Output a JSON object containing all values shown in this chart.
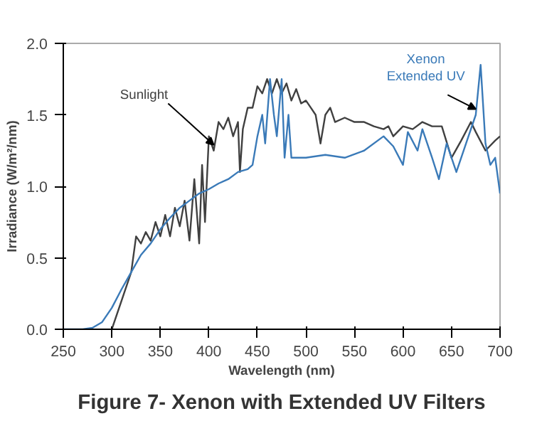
{
  "chart_data": {
    "type": "line",
    "title": "Figure 7- Xenon with Extended UV Filters",
    "xlabel": "Wavelength (nm)",
    "ylabel": "Irradiance (W/m²/nm)",
    "xlim": [
      250,
      700
    ],
    "xticks": [
      250,
      300,
      350,
      400,
      450,
      500,
      550,
      600,
      650,
      700
    ],
    "ylim": [
      0,
      2
    ],
    "yticks": [
      {
        "value": 0,
        "label": "0.0"
      },
      {
        "value": 0.5,
        "label": "0.5"
      },
      {
        "value": 1,
        "label": "1.0"
      },
      {
        "value": 1.5,
        "label": "1.5"
      },
      {
        "value": 2,
        "label": "2.0"
      }
    ],
    "grid": false,
    "marker": "none",
    "line_style": "solid",
    "series": [
      {
        "name": "Sunlight",
        "color": "#404040",
        "x": [
          300,
          310,
          320,
          325,
          330,
          335,
          340,
          345,
          350,
          355,
          360,
          365,
          370,
          375,
          380,
          385,
          390,
          393,
          396,
          400,
          405,
          410,
          415,
          420,
          425,
          430,
          432,
          435,
          440,
          445,
          450,
          455,
          460,
          465,
          470,
          475,
          480,
          485,
          490,
          495,
          500,
          505,
          510,
          515,
          520,
          525,
          530,
          540,
          550,
          560,
          570,
          580,
          585,
          590,
          600,
          610,
          620,
          630,
          640,
          650,
          660,
          670,
          675,
          685,
          695,
          700
        ],
        "values": [
          0,
          0.2,
          0.4,
          0.65,
          0.6,
          0.68,
          0.62,
          0.75,
          0.65,
          0.8,
          0.65,
          0.85,
          0.72,
          0.9,
          0.62,
          1.05,
          0.6,
          1.15,
          0.75,
          1.35,
          1.25,
          1.45,
          1.4,
          1.48,
          1.35,
          1.45,
          1.1,
          1.4,
          1.55,
          1.55,
          1.7,
          1.65,
          1.75,
          1.65,
          1.75,
          1.65,
          1.72,
          1.6,
          1.68,
          1.58,
          1.6,
          1.55,
          1.5,
          1.3,
          1.5,
          1.55,
          1.45,
          1.48,
          1.45,
          1.45,
          1.42,
          1.4,
          1.42,
          1.35,
          1.42,
          1.4,
          1.45,
          1.42,
          1.42,
          1.2,
          1.32,
          1.45,
          1.38,
          1.25,
          1.32,
          1.35
        ]
      },
      {
        "name": "Xenon\nExtended UV",
        "color": "#3a7ab8",
        "x": [
          250,
          270,
          280,
          290,
          300,
          310,
          320,
          330,
          340,
          350,
          360,
          370,
          380,
          390,
          400,
          410,
          420,
          430,
          440,
          445,
          450,
          455,
          458,
          463,
          467,
          470,
          475,
          478,
          482,
          485,
          490,
          500,
          520,
          540,
          560,
          580,
          590,
          600,
          605,
          615,
          620,
          630,
          637,
          645,
          655,
          665,
          675,
          680,
          685,
          690,
          695,
          700
        ],
        "values": [
          0,
          0,
          0.01,
          0.05,
          0.15,
          0.28,
          0.4,
          0.52,
          0.6,
          0.7,
          0.78,
          0.85,
          0.9,
          0.95,
          0.98,
          1.02,
          1.05,
          1.1,
          1.12,
          1.15,
          1.35,
          1.5,
          1.3,
          1.75,
          1.5,
          1.35,
          1.75,
          1.2,
          1.5,
          1.2,
          1.2,
          1.2,
          1.22,
          1.2,
          1.25,
          1.35,
          1.28,
          1.15,
          1.38,
          1.25,
          1.4,
          1.2,
          1.05,
          1.3,
          1.1,
          1.3,
          1.5,
          1.85,
          1.3,
          1.15,
          1.2,
          0.95
        ]
      }
    ]
  }
}
